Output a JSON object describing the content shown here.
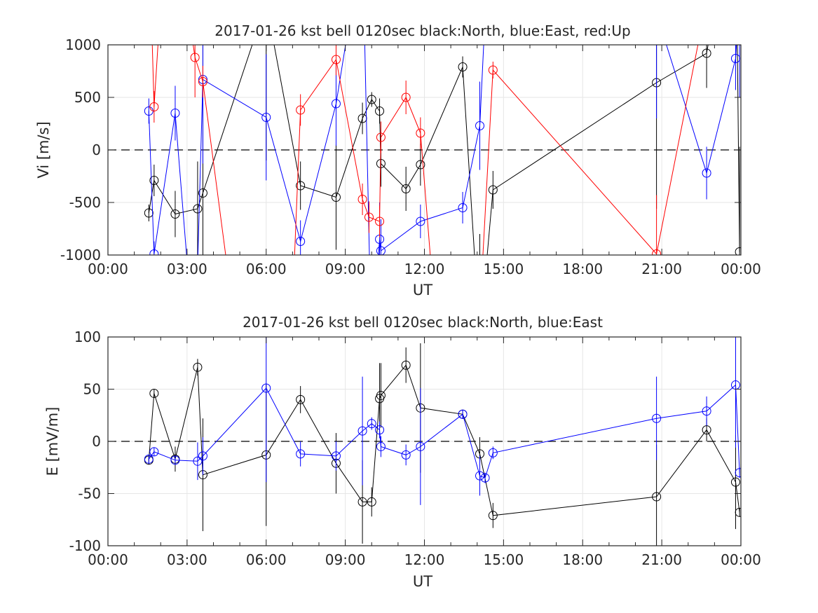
{
  "chart_data": [
    {
      "type": "line",
      "title": "2017-01-26 kst bell 0120sec black:North, blue:East, red:Up",
      "xlabel": "UT",
      "ylabel": "Vi [m/s]",
      "xlim": [
        0,
        24
      ],
      "ylim": [
        -1000,
        1000
      ],
      "x_ticks": [
        0,
        3,
        6,
        9,
        12,
        15,
        18,
        21,
        24
      ],
      "x_tick_labels": [
        "00:00",
        "03:00",
        "06:00",
        "09:00",
        "12:00",
        "15:00",
        "18:00",
        "21:00",
        "00:00"
      ],
      "y_ticks": [
        -1000,
        -500,
        0,
        500,
        1000
      ],
      "y_tick_labels": [
        "-1000",
        "-500",
        "0",
        "500",
        "1000"
      ],
      "grid": true,
      "zero_line": "dashed",
      "series": [
        {
          "name": "North",
          "color": "#000000",
          "x": [
            1.55,
            1.75,
            2.55,
            3.4,
            3.6,
            6.0,
            7.3,
            8.65,
            9.65,
            10.0,
            10.3,
            10.35,
            11.3,
            11.85,
            13.45,
            14.1,
            14.6,
            20.8,
            22.7,
            23.8,
            23.95
          ],
          "y": [
            -600,
            -290,
            -610,
            -560,
            -410,
            1400,
            -340,
            -450,
            300,
            480,
            370,
            -130,
            -370,
            -140,
            790,
            -1800,
            -380,
            640,
            920,
            2500,
            -970
          ],
          "err": [
            80,
            150,
            220,
            450,
            1400,
            1500,
            230,
            500,
            150,
            70,
            120,
            220,
            210,
            200,
            100,
            1000,
            180,
            1200,
            330,
            1000,
            1000
          ]
        },
        {
          "name": "East",
          "color": "#0000ff",
          "x": [
            1.55,
            1.75,
            2.55,
            3.3,
            3.6,
            6.0,
            7.3,
            8.65,
            9.65,
            10.0,
            10.3,
            10.35,
            11.85,
            13.45,
            14.1,
            14.4,
            20.8,
            22.7,
            23.8,
            23.95
          ],
          "y": [
            370,
            -990,
            350,
            -2000,
            670,
            310,
            -870,
            440,
            2000,
            -2000,
            -850,
            -960,
            -680,
            -550,
            230,
            1800,
            1300,
            -220,
            870,
            1500
          ],
          "err": [
            120,
            120,
            260,
            800,
            800,
            600,
            200,
            400,
            500,
            500,
            350,
            300,
            160,
            150,
            420,
            500,
            1000,
            250,
            300,
            1000
          ]
        },
        {
          "name": "Up",
          "color": "#ff0000",
          "x": [
            1.45,
            1.75,
            2.3,
            3.3,
            3.6,
            5.2,
            6.8,
            7.3,
            8.65,
            9.65,
            9.9,
            10.3,
            10.35,
            11.3,
            11.85,
            12.7,
            14.0,
            14.6,
            20.8,
            23.95
          ],
          "y": [
            3000,
            410,
            2600,
            880,
            650,
            -2400,
            -2700,
            380,
            860,
            -470,
            -640,
            -680,
            120,
            500,
            160,
            -2500,
            -2000,
            760,
            -990,
            3000
          ],
          "err": [
            150,
            150,
            150,
            380,
            150,
            150,
            150,
            150,
            150,
            150,
            150,
            150,
            150,
            160,
            150,
            150,
            150,
            80,
            560,
            150
          ]
        }
      ]
    },
    {
      "type": "line",
      "title": "2017-01-26 kst bell 0120sec black:North, blue:East",
      "xlabel": "UT",
      "ylabel": "E [mV/m]",
      "xlim": [
        0,
        24
      ],
      "ylim": [
        -100,
        100
      ],
      "x_ticks": [
        0,
        3,
        6,
        9,
        12,
        15,
        18,
        21,
        24
      ],
      "x_tick_labels": [
        "00:00",
        "03:00",
        "06:00",
        "09:00",
        "12:00",
        "15:00",
        "18:00",
        "21:00",
        "00:00"
      ],
      "y_ticks": [
        -100,
        -50,
        0,
        50,
        100
      ],
      "y_tick_labels": [
        "-100",
        "-50",
        "0",
        "50",
        "100"
      ],
      "grid": true,
      "zero_line": "dashed",
      "series": [
        {
          "name": "North",
          "color": "#000000",
          "x": [
            1.55,
            1.75,
            2.55,
            3.4,
            3.6,
            6.0,
            7.3,
            8.65,
            9.65,
            10.0,
            10.3,
            10.35,
            11.3,
            11.85,
            13.45,
            14.1,
            14.6,
            20.8,
            22.7,
            23.8,
            23.95
          ],
          "y": [
            -18,
            46,
            -17,
            71,
            -32,
            -13,
            40,
            -21,
            -58,
            -58,
            41,
            44,
            73,
            32,
            26,
            -12,
            -71,
            -53,
            11,
            -39,
            -68
          ],
          "err": [
            4,
            4,
            12,
            8,
            54,
            68,
            13,
            29,
            40,
            14,
            34,
            31,
            17,
            62,
            4,
            16,
            12,
            50,
            11,
            45,
            4
          ]
        },
        {
          "name": "East",
          "color": "#0000ff",
          "x": [
            1.55,
            1.75,
            2.55,
            3.4,
            3.6,
            6.0,
            7.3,
            8.65,
            9.65,
            10.0,
            10.3,
            10.35,
            11.3,
            11.85,
            13.45,
            14.1,
            14.3,
            14.6,
            20.8,
            22.7,
            23.8,
            23.95
          ],
          "y": [
            -17,
            -10,
            -18,
            -19,
            -14,
            51,
            -12,
            -14,
            10,
            17,
            11,
            -5,
            -13,
            -5,
            26,
            -33,
            -35,
            -11,
            22,
            29,
            54,
            -30
          ],
          "err": [
            4,
            4,
            4,
            18,
            18,
            90,
            12,
            14,
            52,
            6,
            8,
            10,
            10,
            56,
            4,
            19,
            5,
            6,
            40,
            14,
            60,
            5
          ]
        }
      ]
    }
  ]
}
